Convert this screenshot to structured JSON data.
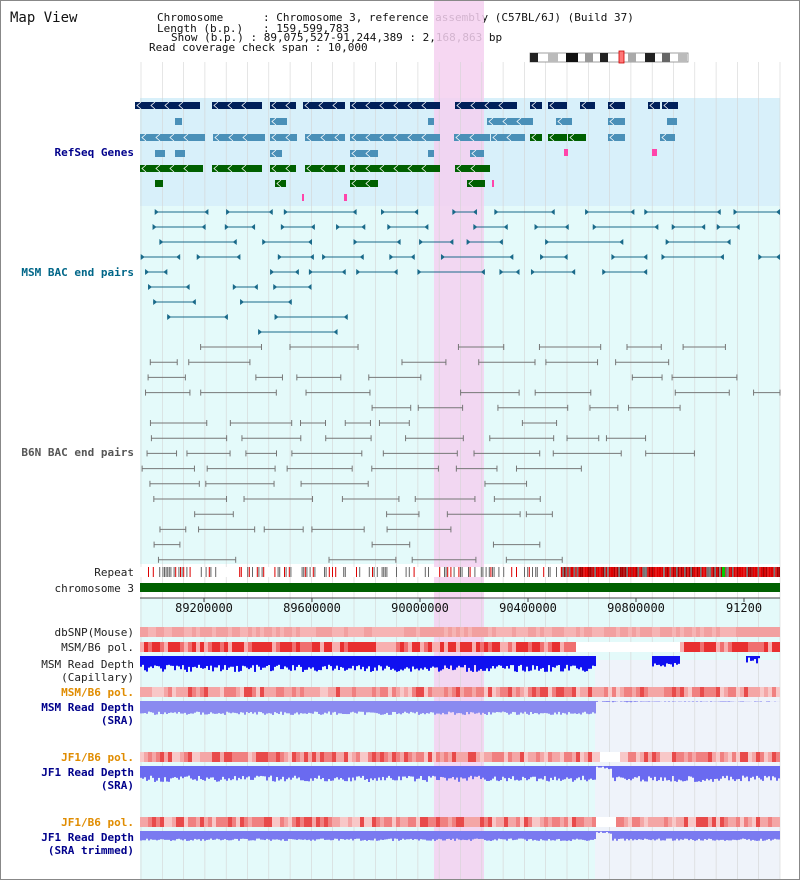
{
  "title": "Map View",
  "info": {
    "chromosome_label": "Chromosome",
    "chromosome_value": "Chromosome 3, reference assembly (C57BL/6J) (Build 37)",
    "length_label": "Length (b.p.)",
    "length_value": "159,599,783",
    "show_label": "Show (b.p.)",
    "show_value": "89,075,527-91,244,389 : 2,168,863 bp",
    "coverage_label": "Read coverage check span",
    "coverage_value": "10,000"
  },
  "tracks": {
    "refseq": "RefSeq Genes",
    "msm_bac": "MSM BAC end pairs",
    "b6n_bac": "B6N BAC end pairs",
    "repeat": "Repeat",
    "chromosome": "chromosome 3",
    "dbsnp": "dbSNP(Mouse)",
    "msm_b6_pol_1": "MSM/B6 pol.",
    "msm_read_depth_cap": "MSM Read Depth\n(Capillary)",
    "msm_b6_pol_2": "MSM/B6 pol.",
    "msm_read_depth_sra": "MSM Read Depth\n(SRA)",
    "jf1_b6_pol_1": "JF1/B6 pol.",
    "jf1_read_depth_sra": "JF1 Read Depth\n(SRA)",
    "jf1_b6_pol_2": "JF1/B6 pol.",
    "jf1_read_depth_trim": "JF1 Read Depth\n(SRA trimmed)"
  },
  "axis": {
    "ticks": [
      "89200000",
      "89600000",
      "90000000",
      "90400000",
      "90800000",
      "91200"
    ]
  },
  "colors": {
    "highlight": "#f4d0f0",
    "refseq_bg": "#d8f0fa",
    "track_bg": "#e4fafa",
    "navy": "#00205a",
    "steel": "#4a90b8",
    "green": "#006000",
    "bac": "#1a6a8a",
    "gray_bac": "#777777",
    "label_blue": "#00008b",
    "label_teal": "#006688",
    "label_orange": "#e08c00"
  }
}
